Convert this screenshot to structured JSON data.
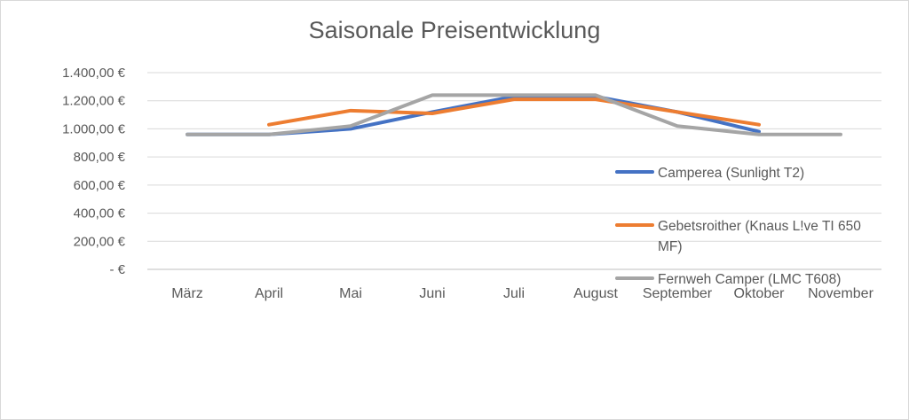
{
  "chart_data": {
    "type": "line",
    "title": "Saisonale Preisentwicklung",
    "xlabel": "",
    "ylabel": "",
    "categories": [
      "März",
      "April",
      "Mai",
      "Juni",
      "Juli",
      "August",
      "September",
      "Oktober",
      "November"
    ],
    "ylim": [
      0,
      1400
    ],
    "y_ticks": [
      0,
      200,
      400,
      600,
      800,
      1000,
      1200,
      1400
    ],
    "y_tick_labels": [
      "-  €",
      "200,00 €",
      "400,00 €",
      "600,00 €",
      "800,00 €",
      "1.000,00 €",
      "1.200,00 €",
      "1.400,00 €"
    ],
    "grid": true,
    "legend_position": "right",
    "series": [
      {
        "name": "Camperea (Sunlight T2)",
        "color": "#4472C4",
        "values": [
          960,
          960,
          1000,
          1120,
          1230,
          1230,
          1120,
          980,
          null
        ]
      },
      {
        "name": "Gebetsroither (Knaus L!ve TI 650 MF)",
        "legend_lines": [
          "Gebetsroither (Knaus L!ve TI 650",
          "MF)"
        ],
        "color": "#ED7D31",
        "values": [
          null,
          1030,
          1130,
          1110,
          1210,
          1210,
          1120,
          1030,
          null
        ]
      },
      {
        "name": "Fernweh Camper (LMC T608)",
        "color": "#A5A5A5",
        "values": [
          960,
          960,
          1020,
          1240,
          1240,
          1240,
          1020,
          960,
          960
        ]
      }
    ]
  }
}
